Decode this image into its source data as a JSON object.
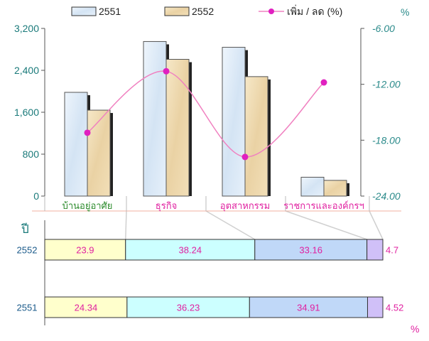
{
  "colors": {
    "bar_2551": "#dce9f5",
    "bar_2552": "#f0dcb4",
    "line": "#f080c0",
    "marker": "#e020c0",
    "axis_left_text": "#1a7a7a",
    "axis_right_text": "#2a8a8a",
    "cat_green": "#2a8a2a",
    "cat_magenta": "#e020a0",
    "seg1": "#ffffcc",
    "seg2": "#ccffff",
    "seg3": "#c0d8f8",
    "seg4": "#d0c0f8",
    "divider": "#f0b0a0",
    "seg_text": "#e020a0",
    "row_label": "#1a5a8a"
  },
  "legend": {
    "item1": "2551",
    "item2": "2552",
    "item3": "เพิ่ม / ลด (%)"
  },
  "right_axis_unit": "%",
  "bottom_unit": "%",
  "row_axis_label": "ปี",
  "chart_data": [
    {
      "type": "bar",
      "categories": [
        "บ้านอยู่อาศัย",
        "ธุรกิจ",
        "อุตสาหกรรม",
        "ราชการและองค์กรฯ"
      ],
      "series": [
        {
          "name": "2551",
          "values": [
            1980,
            2950,
            2840,
            360
          ]
        },
        {
          "name": "2552",
          "values": [
            1640,
            2610,
            2280,
            300
          ]
        }
      ],
      "ylim": [
        0,
        3200
      ],
      "yticks": [
        "0",
        "800",
        "1,600",
        "2,400",
        "3,200"
      ],
      "line_series": {
        "name": "เพิ่ม / ลด (%)",
        "values": [
          -17.2,
          -10.6,
          -19.8,
          -11.8
        ],
        "ylim": [
          -24,
          -6
        ],
        "yticks": [
          "-24.00",
          "-18.00",
          "-12.00",
          "-6.00"
        ]
      },
      "legend": "top",
      "grid": false
    },
    {
      "type": "bar",
      "stacked": true,
      "horizontal": true,
      "rows": [
        {
          "label": "2552",
          "values": [
            23.9,
            38.24,
            33.16,
            4.7
          ],
          "labels": [
            "23.9",
            "38.24",
            "33.16",
            "4.7"
          ]
        },
        {
          "label": "2551",
          "values": [
            24.34,
            36.23,
            34.91,
            4.52
          ],
          "labels": [
            "24.34",
            "36.23",
            "34.91",
            "4.52"
          ]
        }
      ]
    }
  ]
}
